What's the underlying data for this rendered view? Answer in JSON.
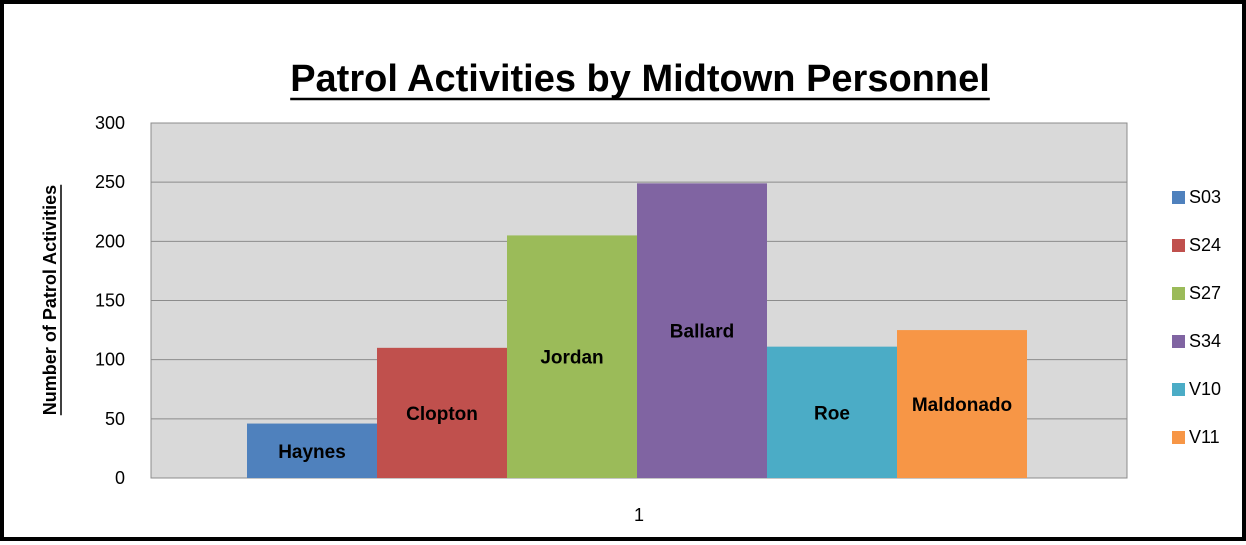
{
  "chart_data": {
    "type": "bar",
    "title": "Patrol Activities by Midtown Personnel",
    "ylabel": "Number of Patrol Activities",
    "xlabel": "",
    "categories": [
      "1"
    ],
    "ylim": [
      0,
      300
    ],
    "yticks": [
      "0",
      "50",
      "100",
      "150",
      "200",
      "250",
      "300"
    ],
    "grid": true,
    "legend_position": "right",
    "series": [
      {
        "name": "S03",
        "label": "Haynes",
        "values": [
          46
        ],
        "color": "#4F81BD"
      },
      {
        "name": "S24",
        "label": "Clopton",
        "values": [
          110
        ],
        "color": "#C0504D"
      },
      {
        "name": "S27",
        "label": "Jordan",
        "values": [
          205
        ],
        "color": "#9BBB59"
      },
      {
        "name": "S34",
        "label": "Ballard",
        "values": [
          249
        ],
        "color": "#8064A2"
      },
      {
        "name": "V10",
        "label": "Roe",
        "values": [
          111
        ],
        "color": "#4BACC6"
      },
      {
        "name": "V11",
        "label": "Maldonado",
        "values": [
          125
        ],
        "color": "#F79646"
      }
    ]
  }
}
